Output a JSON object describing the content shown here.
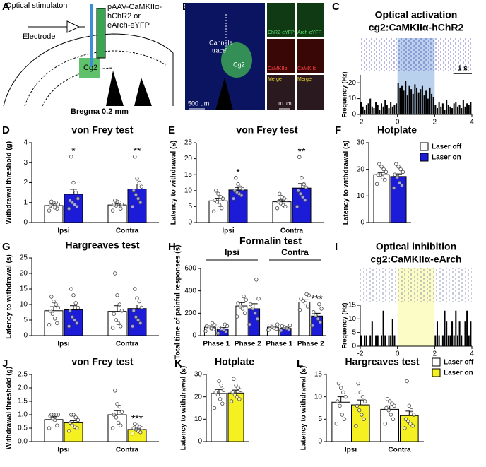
{
  "diagram": {
    "panel": "A",
    "labels": [
      "Optical stimulaton",
      "pAAV-CaMKIIα-",
      "hChR2 or",
      "eArch-eYFP",
      "Electrode",
      "Cg2",
      "Bregma 0.2 mm"
    ]
  },
  "micrograph": {
    "panel": "B",
    "labels": [
      "Cannula",
      "trace",
      "Cg2",
      "500 μm",
      "ChR2-eYFP",
      "Arch-eYFP",
      "CaMKIIα",
      "CaMKIIα",
      "Merge",
      "Merge",
      "10 μm"
    ]
  },
  "chart_data": [
    {
      "type": "histogram",
      "panel": "C",
      "title": "Optical activation",
      "subtitle": "cg2:CaMKIIα-hChR2",
      "y_label": "Frequency (Hz)",
      "xlim": [
        -2,
        4
      ],
      "xticks": [
        -2,
        0,
        2,
        4
      ],
      "ylim": [
        0,
        25
      ],
      "yticks": [
        0,
        10,
        20
      ],
      "color": "#000000",
      "raster_color": "#3a3aa8",
      "shade_range": [
        0,
        2
      ],
      "shade_color": "#a9c6ea",
      "scale_bar": {
        "label": "1 s",
        "value": 1
      },
      "bins": [
        -2,
        -1.9,
        -1.8,
        -1.7,
        -1.6,
        -1.5,
        -1.4,
        -1.3,
        -1.2,
        -1.1,
        -1,
        -0.9,
        -0.8,
        -0.7,
        -0.6,
        -0.5,
        -0.4,
        -0.3,
        -0.2,
        -0.1,
        0,
        0.1,
        0.2,
        0.3,
        0.4,
        0.5,
        0.6,
        0.7,
        0.8,
        0.9,
        1,
        1.1,
        1.2,
        1.3,
        1.4,
        1.5,
        1.6,
        1.7,
        1.8,
        1.9,
        2,
        2.1,
        2.2,
        2.3,
        2.4,
        2.5,
        2.6,
        2.7,
        2.8,
        2.9,
        3,
        3.1,
        3.2,
        3.3,
        3.4,
        3.5,
        3.6,
        3.7,
        3.8,
        3.9,
        4
      ],
      "values": [
        8,
        5,
        3,
        6,
        7,
        10,
        5,
        4,
        8,
        6,
        3,
        7,
        5,
        9,
        6,
        4,
        8,
        5,
        6,
        7,
        20,
        17,
        18,
        15,
        21,
        12,
        18,
        16,
        13,
        19,
        17,
        14,
        16,
        18,
        12,
        15,
        10,
        17,
        13,
        11,
        6,
        4,
        8,
        5,
        7,
        3,
        9,
        6,
        5,
        4,
        7,
        8,
        5,
        6,
        4,
        9,
        5,
        7,
        6,
        8
      ]
    },
    {
      "type": "bar",
      "panel": "D",
      "title": "von Frey test",
      "y_label": "Withdrawal threshold (g)",
      "categories": [
        "Ipsi",
        "Contra"
      ],
      "ylim": [
        0,
        4
      ],
      "yticks": [
        0,
        1,
        2,
        3,
        4
      ],
      "series": [
        {
          "color": "#ffffff",
          "values": [
            0.85,
            0.88
          ],
          "errors": [
            0.08,
            0.07
          ],
          "points": [
            [
              0.6,
              0.7,
              0.75,
              0.8,
              0.85,
              0.9,
              1.0,
              1.0,
              1.05
            ],
            [
              0.6,
              0.7,
              0.8,
              0.85,
              0.9,
              0.9,
              1.0,
              1.05,
              1.1
            ]
          ]
        },
        {
          "color": "#1c1cd8",
          "values": [
            1.42,
            1.68
          ],
          "errors": [
            0.25,
            0.25
          ],
          "points": [
            [
              0.7,
              0.8,
              0.9,
              1.0,
              1.1,
              1.2,
              1.5,
              2.0,
              3.3
            ],
            [
              0.8,
              1.0,
              1.2,
              1.4,
              1.6,
              1.8,
              2.0,
              2.2,
              3.3
            ]
          ],
          "stars": [
            "*",
            "**"
          ]
        }
      ]
    },
    {
      "type": "bar",
      "panel": "E",
      "title": "von Frey test",
      "y_label": "Latency to withdrawal (s)",
      "categories": [
        "Ipsi",
        "Contra"
      ],
      "ylim": [
        0,
        25
      ],
      "yticks": [
        0,
        5,
        10,
        15,
        20,
        25
      ],
      "series": [
        {
          "color": "#ffffff",
          "values": [
            6.8,
            6.5
          ],
          "errors": [
            0.8,
            0.6
          ],
          "points": [
            [
              3.5,
              4.5,
              5.5,
              6.5,
              7,
              7.5,
              8,
              9,
              10
            ],
            [
              4.5,
              5,
              5.5,
              6,
              6.5,
              7,
              7.5,
              8,
              9
            ]
          ]
        },
        {
          "color": "#1c1cd8",
          "values": [
            10.2,
            10.8
          ],
          "errors": [
            0.8,
            1.4
          ],
          "points": [
            [
              7.5,
              8.5,
              9,
              9.5,
              10,
              10.5,
              11,
              12,
              14
            ],
            [
              5,
              7,
              8,
              9,
              10,
              11,
              12,
              14,
              20.5
            ]
          ],
          "stars": [
            "*",
            "**"
          ]
        }
      ]
    },
    {
      "type": "bar",
      "panel": "F",
      "title": "Hotplate",
      "y_label": "Latency to withdrawal (s)",
      "categories": [
        null
      ],
      "ylim": [
        0,
        30
      ],
      "yticks": [
        0,
        10,
        20,
        30
      ],
      "legend": true,
      "series": [
        {
          "name": "Laser off",
          "color": "#ffffff",
          "values": [
            18.0
          ],
          "errors": [
            0.8
          ],
          "points": [
            [
              14.5,
              16,
              17,
              18,
              18,
              19,
              20,
              21,
              22
            ]
          ]
        },
        {
          "name": "Laser on",
          "color": "#1c1cd8",
          "values": [
            17.3
          ],
          "errors": [
            1.0
          ],
          "points": [
            [
              13,
              14,
              15,
              17,
              18,
              19,
              20,
              21,
              22
            ]
          ]
        }
      ]
    },
    {
      "type": "bar",
      "panel": "G",
      "title": "Hargreaves test",
      "y_label": "Latency to withdrawal (s)",
      "categories": [
        "Ipsi",
        "Contra"
      ],
      "ylim": [
        0,
        25
      ],
      "yticks": [
        0,
        5,
        10,
        15,
        20,
        25
      ],
      "series": [
        {
          "color": "#ffffff",
          "values": [
            8.0,
            7.8
          ],
          "errors": [
            1.3,
            1.8
          ],
          "points": [
            [
              3.5,
              4,
              5.5,
              7,
              8,
              9,
              10,
              11,
              12.5
            ],
            [
              2.5,
              3,
              4,
              5,
              7,
              8,
              10,
              13,
              20
            ]
          ]
        },
        {
          "color": "#1c1cd8",
          "values": [
            8.3,
            8.7
          ],
          "errors": [
            1.3,
            1.2
          ],
          "points": [
            [
              3,
              4,
              5,
              6,
              8,
              9,
              10.5,
              13,
              15
            ],
            [
              3,
              4,
              5,
              6,
              8,
              9,
              11,
              12,
              15
            ]
          ]
        }
      ]
    },
    {
      "type": "bar",
      "panel": "H",
      "title": "Formalin test",
      "y_label": "Total time of painful responses (s)",
      "categories": [
        "Phase 1",
        "Phase 2",
        "Phase 1",
        "Phase 2"
      ],
      "groups": [
        "Ipsi",
        "Contra"
      ],
      "ylim": [
        0,
        600
      ],
      "yticks": [
        0,
        200,
        400,
        600
      ],
      "series": [
        {
          "color": "#ffffff",
          "values": [
            75,
            265,
            75,
            300
          ],
          "errors": [
            12,
            30,
            8,
            20
          ],
          "points": [
            [
              40,
              55,
              65,
              75,
              85,
              95,
              110
            ],
            [
              170,
              200,
              240,
              260,
              290,
              320,
              350
            ],
            [
              50,
              60,
              70,
              80,
              90,
              100
            ],
            [
              230,
              260,
              290,
              310,
              330,
              360,
              370
            ]
          ]
        },
        {
          "color": "#1c1cd8",
          "values": [
            60,
            240,
            65,
            175
          ],
          "errors": [
            12,
            45,
            8,
            25
          ],
          "points": [
            [
              20,
              35,
              50,
              60,
              70,
              85,
              100
            ],
            [
              100,
              150,
              200,
              240,
              280,
              330,
              500
            ],
            [
              45,
              55,
              65,
              75,
              85,
              90
            ],
            [
              90,
              120,
              150,
              180,
              210,
              240,
              280
            ]
          ],
          "stars": [
            null,
            null,
            null,
            "***"
          ]
        }
      ]
    },
    {
      "type": "histogram",
      "panel": "I",
      "title": "Optical inhibition",
      "subtitle": "cg2:CaMKIIα-eArch",
      "y_label": "Frequency (Hz)",
      "xlim": [
        -2,
        4
      ],
      "xticks": [
        -2,
        0,
        2,
        4
      ],
      "ylim": [
        0,
        15
      ],
      "yticks": [
        0,
        5,
        10,
        15
      ],
      "color": "#000000",
      "raster_color": "#6a6aa0",
      "shade_range": [
        0,
        2
      ],
      "shade_color": "#fbfbb8",
      "bins": [
        -2,
        -1.9,
        -1.8,
        -1.7,
        -1.6,
        -1.5,
        -1.4,
        -1.3,
        -1.2,
        -1.1,
        -1,
        -0.9,
        -0.8,
        -0.7,
        -0.6,
        -0.5,
        -0.4,
        -0.3,
        -0.2,
        -0.1,
        0,
        0.1,
        0.2,
        0.3,
        0.4,
        0.5,
        0.6,
        0.7,
        0.8,
        0.9,
        1,
        1.1,
        1.2,
        1.3,
        1.4,
        1.5,
        1.6,
        1.7,
        1.8,
        1.9,
        2,
        2.1,
        2.2,
        2.3,
        2.4,
        2.5,
        2.6,
        2.7,
        2.8,
        2.9,
        3,
        3.1,
        3.2,
        3.3,
        3.4,
        3.5,
        3.6,
        3.7,
        3.8,
        3.9,
        4
      ],
      "values": [
        4,
        0,
        4,
        4,
        0,
        4,
        9,
        0,
        4,
        4,
        0,
        4,
        13,
        4,
        0,
        4,
        4,
        10,
        4,
        0,
        0,
        0,
        0,
        0,
        0,
        0,
        0,
        0,
        0,
        0,
        0,
        0,
        0,
        0,
        0,
        0,
        0,
        0,
        0,
        0,
        4,
        9,
        4,
        0,
        4,
        13,
        9,
        4,
        4,
        9,
        4,
        13,
        4,
        9,
        4,
        0,
        9,
        13,
        4,
        9
      ]
    },
    {
      "type": "bar",
      "panel": "J",
      "title": "von Frey test",
      "y_label": "Withdrawal threshold (g)",
      "categories": [
        "Ipsi",
        "Contra"
      ],
      "ylim": [
        0,
        2.5
      ],
      "yticks": [
        {
          "value": 0,
          "label": "0.0"
        },
        0.5,
        {
          "value": 1,
          "label": "1.0"
        },
        1.5,
        {
          "value": 2,
          "label": "2.0"
        },
        2.5
      ],
      "series": [
        {
          "color": "#ffffff",
          "values": [
            0.82,
            1.0
          ],
          "errors": [
            0.1,
            0.15
          ],
          "points": [
            [
              0.5,
              0.6,
              0.8,
              0.85,
              0.95,
              1.0,
              1.0,
              1.0,
              1.0
            ],
            [
              0.5,
              0.6,
              0.7,
              0.9,
              1.0,
              1.1,
              1.3,
              1.4,
              1.9
            ]
          ]
        },
        {
          "color": "#f4f022",
          "values": [
            0.7,
            0.45
          ],
          "errors": [
            0.08,
            0.05
          ],
          "points": [
            [
              0.4,
              0.5,
              0.55,
              0.6,
              0.7,
              0.8,
              0.9,
              1.0,
              1.0
            ],
            [
              0.3,
              0.35,
              0.4,
              0.45,
              0.5,
              0.5,
              0.55,
              0.6,
              0.65
            ]
          ],
          "stars": [
            null,
            "***"
          ]
        }
      ]
    },
    {
      "type": "bar",
      "panel": "K",
      "title": "Hotplate",
      "y_label": "Latency to withdrawal (s)",
      "categories": [
        null
      ],
      "ylim": [
        0,
        30
      ],
      "yticks": [
        0,
        10,
        20,
        30
      ],
      "series": [
        {
          "color": "#ffffff",
          "values": [
            21.5
          ],
          "errors": [
            1.8
          ],
          "points": [
            [
              15,
              17,
              19,
              21,
              22,
              23,
              25,
              27
            ]
          ]
        },
        {
          "color": "#f4f022",
          "values": [
            21.7
          ],
          "errors": [
            1.3
          ],
          "points": [
            [
              18,
              19,
              20,
              21,
              22,
              23,
              24,
              25,
              28
            ]
          ]
        }
      ]
    },
    {
      "type": "bar",
      "panel": "L",
      "title": "Hargreaves test",
      "y_label": "Latency to withdrawal (s)",
      "categories": [
        "Ipsi",
        "Contra"
      ],
      "ylim": [
        0,
        15
      ],
      "yticks": [
        0,
        5,
        10,
        15
      ],
      "legend": true,
      "series": [
        {
          "name": "Laser off",
          "color": "#ffffff",
          "values": [
            8.8,
            7.2
          ],
          "errors": [
            1.2,
            0.8
          ],
          "points": [
            [
              4,
              5,
              6,
              8,
              9,
              10,
              11,
              12,
              13
            ],
            [
              4,
              5,
              6,
              7,
              7.5,
              8,
              8.5,
              9,
              9.5
            ]
          ]
        },
        {
          "name": "Laser on",
          "color": "#f4f022",
          "values": [
            8.2,
            5.8
          ],
          "errors": [
            1.1,
            1.0
          ],
          "points": [
            [
              3.5,
              5,
              6,
              7,
              8,
              9,
              10,
              11,
              13
            ],
            [
              3,
              3.5,
              4,
              4.5,
              5,
              6,
              7,
              8,
              13.5
            ]
          ]
        }
      ]
    }
  ]
}
